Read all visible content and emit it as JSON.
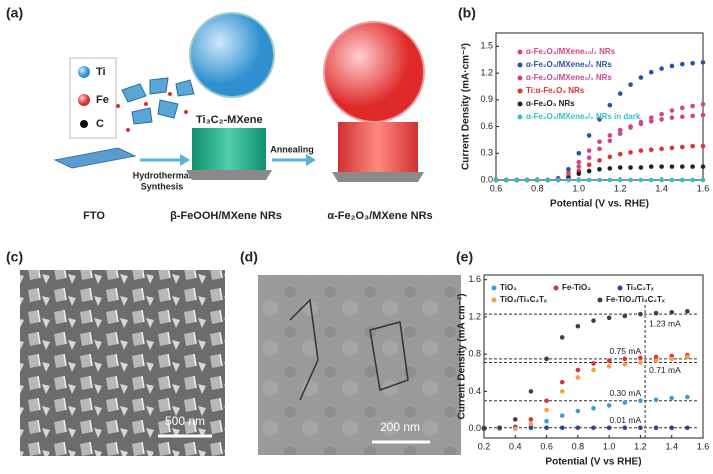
{
  "panels": {
    "a": {
      "label": "(a)",
      "legend": [
        "Ti",
        "Fe",
        "C"
      ],
      "mxene": "Ti₃C₂-MXene",
      "step1": [
        "Hydrothermal",
        "Synthesis"
      ],
      "step2": "Annealing",
      "products": [
        "FTO",
        "β-FeOOH/MXene NRs",
        "α-Fe₂O₃/MXene NRs"
      ]
    },
    "c": {
      "label": "(c)",
      "scale_bar": "500 nm"
    },
    "d": {
      "label": "(d)",
      "scale_bar": "200 nm"
    }
  },
  "chart_data": [
    {
      "type": "scatter",
      "label": "(b)",
      "x_label": "Potential (V vs. RHE)",
      "y_label": "Current Density (mA·cm⁻²)",
      "xlim": [
        0.6,
        1.6
      ],
      "xticks": [
        0.6,
        0.8,
        {
          "value": 1.0,
          "label": "1.0"
        },
        1.2,
        1.4,
        1.6
      ],
      "ylim": [
        0,
        1.65
      ],
      "yticks": [
        {
          "value": 0,
          "label": "0.0"
        },
        0.3,
        0.6,
        0.9,
        1.2,
        1.5
      ],
      "x": [
        0.6,
        0.65,
        0.7,
        0.75,
        0.8,
        0.85,
        0.9,
        0.95,
        1.0,
        1.05,
        1.1,
        1.15,
        1.2,
        1.25,
        1.3,
        1.35,
        1.4,
        1.45,
        1.5,
        1.55,
        1.6
      ],
      "series": [
        {
          "name": "α-Fe₂O₃/MXene₁₀/₁ NRs",
          "color": "#e0407a",
          "values": [
            0,
            0,
            0,
            0,
            0,
            0,
            0.01,
            0.08,
            0.2,
            0.33,
            0.43,
            0.5,
            0.56,
            0.6,
            0.63,
            0.66,
            0.68,
            0.7,
            0.71,
            0.72,
            0.73
          ]
        },
        {
          "name": "α-Fe₂O₃/MXene₅/₁ NRs",
          "color": "#2a4fa8",
          "values": [
            0,
            0,
            0,
            0,
            0,
            0,
            0.02,
            0.12,
            0.3,
            0.5,
            0.68,
            0.84,
            0.97,
            1.07,
            1.15,
            1.21,
            1.25,
            1.28,
            1.3,
            1.31,
            1.32
          ]
        },
        {
          "name": "α-Fe₂O₃/MXene₃/₁ NRs",
          "color": "#c8488c",
          "values": [
            0,
            0,
            0,
            0,
            0,
            0,
            0.01,
            0.05,
            0.15,
            0.25,
            0.35,
            0.44,
            0.52,
            0.59,
            0.65,
            0.7,
            0.74,
            0.78,
            0.81,
            0.83,
            0.85
          ]
        },
        {
          "name": "Ti:α-Fe₂O₃ NRs",
          "color": "#e03030",
          "values": [
            0,
            0,
            0,
            0,
            0,
            0,
            0,
            0.03,
            0.1,
            0.17,
            0.22,
            0.26,
            0.29,
            0.31,
            0.33,
            0.34,
            0.35,
            0.36,
            0.37,
            0.38,
            0.38
          ]
        },
        {
          "name": "α-Fe₂O₃ NRs",
          "color": "#222222",
          "values": [
            0,
            0,
            0,
            0,
            0,
            0,
            0,
            0.02,
            0.07,
            0.1,
            0.12,
            0.13,
            0.14,
            0.14,
            0.14,
            0.15,
            0.15,
            0.15,
            0.15,
            0.15,
            0.15
          ]
        },
        {
          "name": "α-Fe₂O₃/MXene₅/₁ NRs in dark",
          "color": "#30c0d0",
          "values": [
            0,
            0,
            0,
            0,
            0,
            0,
            0,
            0,
            0,
            0,
            0,
            0,
            0,
            0,
            0,
            0,
            0,
            0,
            0,
            0,
            0
          ]
        }
      ]
    },
    {
      "type": "scatter",
      "label": "(e)",
      "x_label": "Potential (V vs RHE)",
      "y_label": "Current Density (mA cm⁻²)",
      "xlim": [
        0.2,
        1.6
      ],
      "xticks": [
        0.2,
        0.4,
        0.6,
        0.8,
        {
          "value": 1.0,
          "label": "1.0"
        },
        1.2,
        1.4,
        1.6
      ],
      "ylim": [
        -0.1,
        1.65
      ],
      "yticks": [
        {
          "value": 0,
          "label": "0.0"
        },
        0.4,
        0.8,
        1.2,
        1.6
      ],
      "x": [
        0.2,
        0.3,
        0.4,
        0.5,
        0.6,
        0.7,
        0.8,
        0.9,
        1.0,
        1.1,
        1.2,
        1.3,
        1.4,
        1.5
      ],
      "series": [
        {
          "name": "TiO₂",
          "color": "#3aa0d0",
          "values": [
            0,
            0,
            0,
            0.02,
            0.08,
            0.14,
            0.19,
            0.22,
            0.25,
            0.28,
            0.3,
            0.31,
            0.33,
            0.34
          ]
        },
        {
          "name": "Fe-TiO₂",
          "color": "#e03040",
          "values": [
            0,
            0,
            0.02,
            0.1,
            0.3,
            0.5,
            0.63,
            0.7,
            0.73,
            0.75,
            0.76,
            0.77,
            0.78,
            0.79
          ]
        },
        {
          "name": "Ti₃C₂Tₓ",
          "color": "#3040a0",
          "values": [
            0.01,
            0.01,
            0.01,
            0.01,
            0.01,
            0.01,
            0.01,
            0.01,
            0.01,
            0.01,
            0.01,
            0.01,
            0.01,
            0.01
          ]
        },
        {
          "name": "TiO₂/Ti₃C₂Tₓ",
          "color": "#f5a040",
          "values": [
            0,
            0,
            0,
            0.05,
            0.2,
            0.4,
            0.55,
            0.63,
            0.67,
            0.69,
            0.71,
            0.73,
            0.75,
            0.77
          ]
        },
        {
          "name": "Fe-TiO₂/Ti₃C₂Tₓ",
          "color": "#404040",
          "values": [
            0,
            0.01,
            0.1,
            0.4,
            0.75,
            0.98,
            1.1,
            1.16,
            1.19,
            1.21,
            1.23,
            1.24,
            1.25,
            1.26
          ]
        }
      ],
      "vline": 1.23,
      "annotations": [
        {
          "label": "1.23 mA",
          "value": 1.23
        },
        {
          "label": "0.75 mA",
          "value": 0.75
        },
        {
          "label": "0.71 mA",
          "value": 0.71
        },
        {
          "label": "0.30 mA",
          "value": 0.3
        },
        {
          "label": "0.01 mA",
          "value": 0.01
        }
      ]
    }
  ]
}
